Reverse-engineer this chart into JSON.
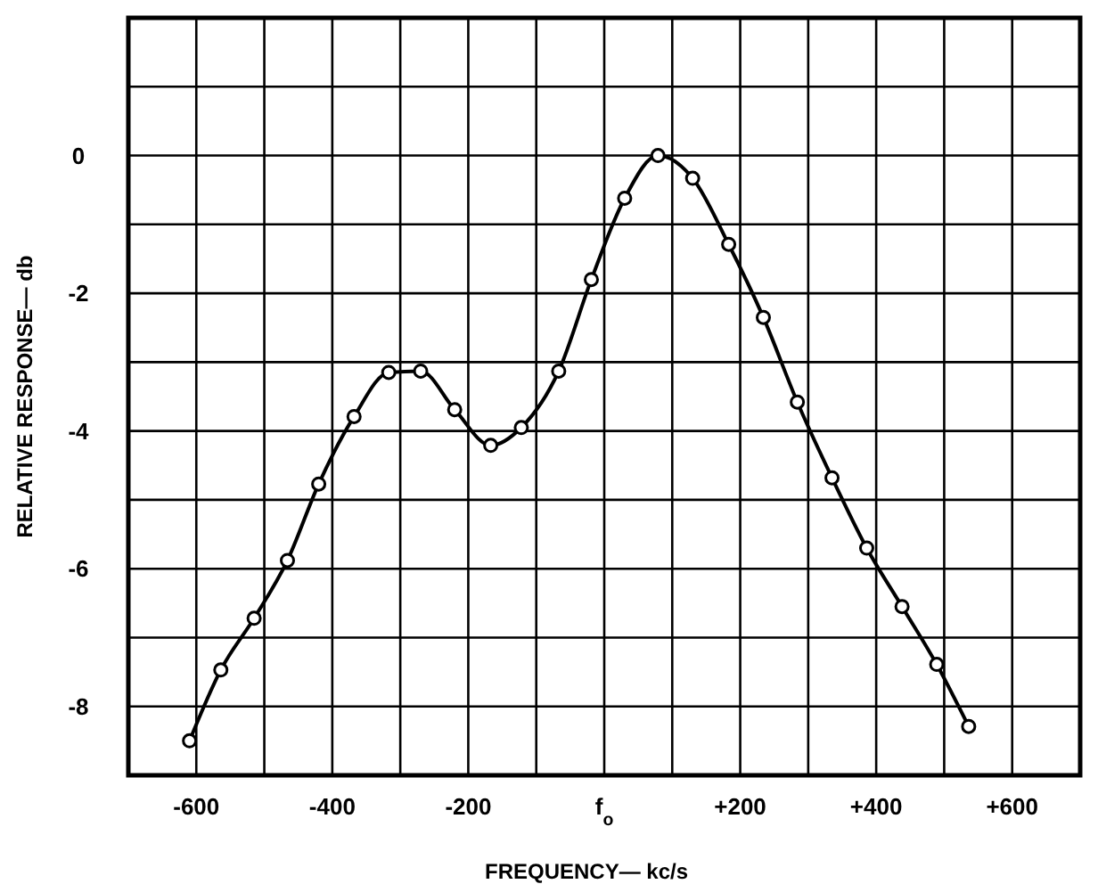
{
  "chart_data": {
    "type": "line",
    "xlabel": "FREQUENCY— kc/s",
    "ylabel": "RELATIVE RESPONSE— db",
    "xlim": [
      -700,
      700
    ],
    "xticks": [
      {
        "value": -700,
        "label": null
      },
      -600,
      {
        "value": -500,
        "label": null
      },
      -400,
      {
        "value": -300,
        "label": null
      },
      -200,
      {
        "value": -100,
        "label": null
      },
      {
        "value": 0,
        "label": "f$_{o}$"
      },
      {
        "value": 100,
        "label": null
      },
      "+200",
      {
        "value": 300,
        "label": null
      },
      "+400",
      {
        "value": 500,
        "label": null
      },
      "+600",
      {
        "value": 700,
        "label": null
      }
    ],
    "ylim": [
      -9,
      2
    ],
    "yticks": [
      {
        "value": -9,
        "label": null
      },
      -8,
      {
        "value": -7,
        "label": null
      },
      -6,
      {
        "value": -5,
        "label": null
      },
      -4,
      {
        "value": -3,
        "label": null
      },
      -2,
      {
        "value": -1,
        "label": null
      },
      0,
      {
        "value": 1,
        "label": null
      },
      {
        "value": 2,
        "label": null
      }
    ],
    "grid": true,
    "marker": "circle",
    "line_style": "solid",
    "series": [
      {
        "color": "#000000",
        "x": [
          -610,
          -564,
          -515,
          -466,
          -420,
          -368,
          -317,
          -270,
          -220,
          -167,
          -122,
          -67,
          -19,
          30,
          79,
          130,
          183,
          234,
          284,
          335,
          386,
          438,
          489,
          536
        ],
        "values": [
          -8.5,
          -7.47,
          -6.72,
          -5.88,
          -4.77,
          -3.79,
          -3.15,
          -3.13,
          -3.69,
          -4.21,
          -3.95,
          -3.13,
          -1.8,
          -0.62,
          0,
          -0.33,
          -1.29,
          -2.35,
          -3.58,
          -4.68,
          -5.7,
          -6.55,
          -7.39,
          -8.29
        ]
      }
    ]
  }
}
